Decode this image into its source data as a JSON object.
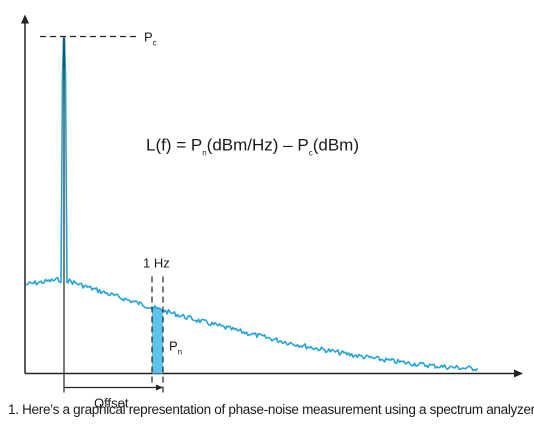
{
  "labels": {
    "carrier": "P",
    "carrier_sub": "c",
    "formula_lhs": "L(f) = P",
    "formula_sub_n": "n",
    "formula_mid": "(dBm/Hz) – P",
    "formula_sub_c": "c",
    "formula_rhs": "(dBm)",
    "bandwidth": "1 Hz",
    "noise": "P",
    "noise_sub": "n",
    "offset": "Offset"
  },
  "caption": "1. Here’s a graphical representation of phase-noise measurement using a spectrum analyzer.",
  "colors": {
    "trace": "#22a3d8",
    "fill": "#5bc3ec",
    "axis": "#222222"
  }
}
